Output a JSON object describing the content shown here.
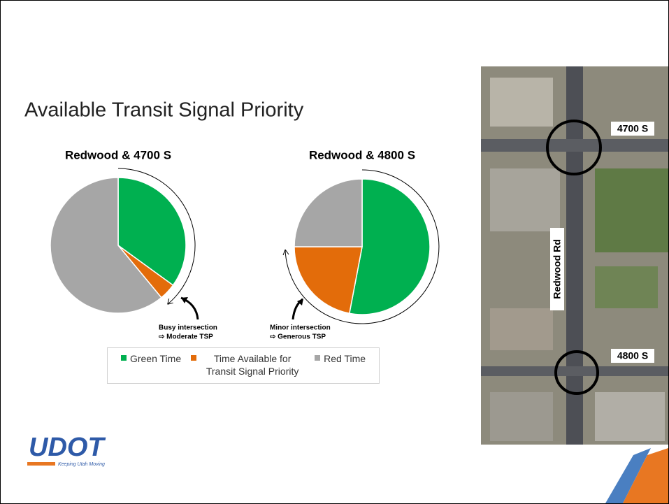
{
  "title": "Available Transit Signal Priority",
  "chart_data": [
    {
      "type": "pie",
      "title": "Redwood & 4700 S",
      "categories": [
        "Green Time",
        "Time Available for Transit Signal Priority",
        "Red Time"
      ],
      "values": [
        35,
        4,
        61
      ],
      "colors": [
        "#00b050",
        "#e36c0a",
        "#a6a6a6"
      ],
      "annotation": [
        "Busy intersection",
        "⇨ Moderate TSP"
      ]
    },
    {
      "type": "pie",
      "title": "Redwood & 4800 S",
      "categories": [
        "Green Time",
        "Time Available for Transit Signal Priority",
        "Red Time"
      ],
      "values": [
        53,
        22,
        25
      ],
      "colors": [
        "#00b050",
        "#e36c0a",
        "#a6a6a6"
      ],
      "annotation": [
        "Minor intersection",
        "⇨ Generous TSP"
      ]
    }
  ],
  "map": {
    "labels": [
      "4700 S",
      "4800 S"
    ],
    "road": "Redwood Rd"
  },
  "logo": {
    "name": "UDOT",
    "tagline": "Keeping Utah Moving"
  }
}
